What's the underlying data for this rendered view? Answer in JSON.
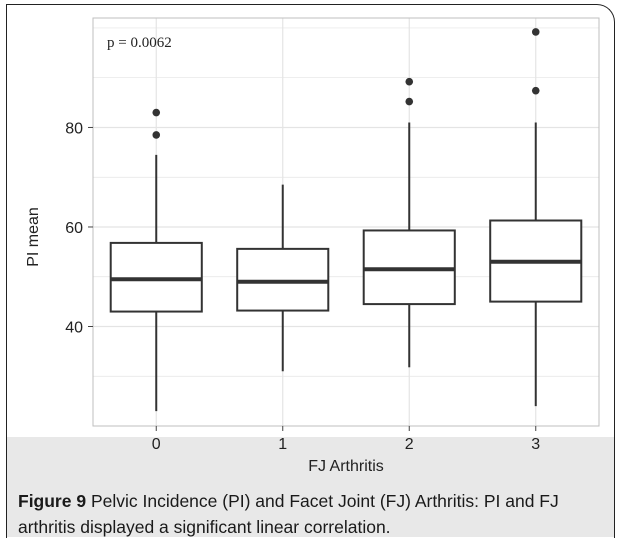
{
  "chart_data": {
    "type": "box",
    "annotation": "p = 0.0062",
    "xlabel": "FJ Arthritis",
    "ylabel": "PI mean",
    "categories": [
      "0",
      "1",
      "2",
      "3"
    ],
    "ylim": [
      20,
      102
    ],
    "yticks": [
      40,
      60,
      80
    ],
    "grid": true,
    "boxes": [
      {
        "category": "0",
        "whisker_low": 23,
        "q1": 43,
        "median": 49.5,
        "q3": 56.8,
        "whisker_high": 74.5,
        "outliers": [
          78.5,
          83
        ]
      },
      {
        "category": "1",
        "whisker_low": 31,
        "q1": 43.2,
        "median": 49,
        "q3": 55.6,
        "whisker_high": 68.5,
        "outliers": []
      },
      {
        "category": "2",
        "whisker_low": 31.8,
        "q1": 44.5,
        "median": 51.5,
        "q3": 59.3,
        "whisker_high": 81,
        "outliers": [
          85.2,
          89.2
        ]
      },
      {
        "category": "3",
        "whisker_low": 24,
        "q1": 45,
        "median": 53,
        "q3": 61.3,
        "whisker_high": 81,
        "outliers": [
          87.4,
          99.2
        ]
      }
    ]
  },
  "caption": {
    "label": "Figure 9",
    "text": " Pelvic Incidence (PI) and Facet Joint (FJ) Arthritis: PI and FJ arthritis displayed a significant linear correlation."
  },
  "colors": {
    "plot_bg": "#ffffff",
    "grid": "#e4e4e4",
    "ink": "#333333",
    "caption_bg": "#e8e8e8"
  }
}
